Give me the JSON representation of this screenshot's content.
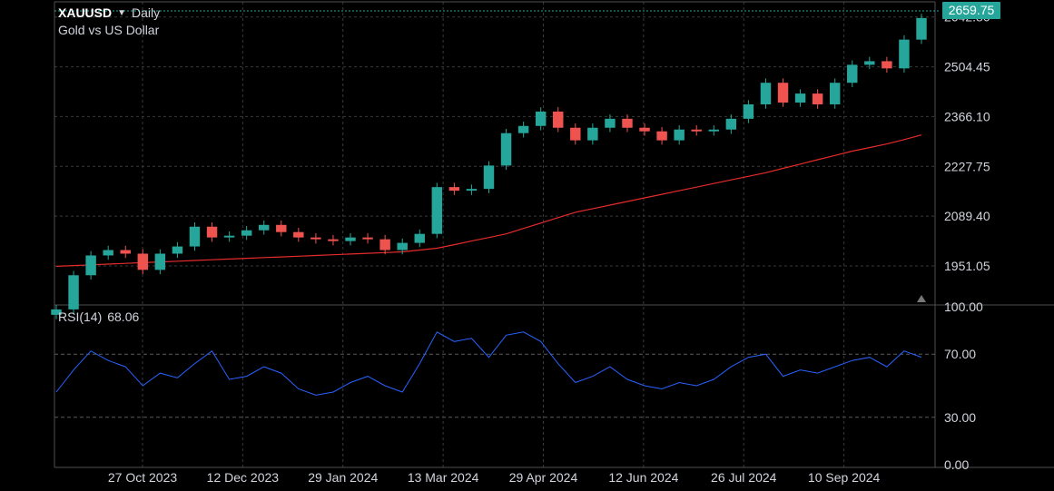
{
  "header": {
    "symbol": "XAUUSD",
    "caret_icon": "dropdown-caret-icon",
    "interval": "Daily",
    "subtitle": "Gold vs US Dollar"
  },
  "price_tag": {
    "value": "2659.75",
    "color": "#26a69a"
  },
  "rsi_label": {
    "name": "RSI(14)",
    "value": "68.06"
  },
  "colors": {
    "up": "#26a69a",
    "down": "#ef5350",
    "ma": "#e52b2b",
    "rsi": "#2962ff",
    "grid": "#3a3a3a"
  },
  "chart_data": [
    {
      "type": "candlestick",
      "name": "XAUUSD Daily",
      "x": [
        "2023-10-02",
        "2023-10-09",
        "2023-10-16",
        "2023-10-23",
        "2023-10-30",
        "2023-11-06",
        "2023-11-13",
        "2023-11-20",
        "2023-11-27",
        "2023-12-04",
        "2023-12-11",
        "2023-12-18",
        "2023-12-25",
        "2024-01-01",
        "2024-01-08",
        "2024-01-15",
        "2024-01-22",
        "2024-01-29",
        "2024-02-05",
        "2024-02-12",
        "2024-02-19",
        "2024-02-26",
        "2024-03-04",
        "2024-03-11",
        "2024-03-18",
        "2024-03-25",
        "2024-04-01",
        "2024-04-08",
        "2024-04-15",
        "2024-04-22",
        "2024-04-29",
        "2024-05-06",
        "2024-05-13",
        "2024-05-20",
        "2024-05-27",
        "2024-06-03",
        "2024-06-10",
        "2024-06-17",
        "2024-06-24",
        "2024-07-01",
        "2024-07-08",
        "2024-07-15",
        "2024-07-22",
        "2024-07-29",
        "2024-08-05",
        "2024-08-12",
        "2024-08-19",
        "2024-08-26",
        "2024-09-02",
        "2024-09-09",
        "2024-09-16"
      ],
      "values": [
        1830,
        1925,
        1980,
        1995,
        1985,
        1940,
        1985,
        2005,
        2060,
        2030,
        2035,
        2050,
        2065,
        2045,
        2030,
        2025,
        2020,
        2030,
        2025,
        1995,
        2015,
        2040,
        2170,
        2160,
        2165,
        2230,
        2320,
        2340,
        2380,
        2335,
        2300,
        2335,
        2360,
        2335,
        2325,
        2300,
        2330,
        2325,
        2330,
        2360,
        2400,
        2460,
        2405,
        2430,
        2400,
        2460,
        2510,
        2520,
        2500,
        2580,
        2640
      ],
      "yticks": [
        "1951.05",
        "2089.40",
        "2227.75",
        "2366.10",
        "2504.45",
        "2642.80"
      ],
      "xticks": [
        "27 Oct 2023",
        "12 Dec 2023",
        "29 Jan 2024",
        "13 Mar 2024",
        "29 Apr 2024",
        "12 Jun 2024",
        "26 Jul 2024",
        "10 Sep 2024"
      ],
      "ylim": [
        1850,
        2680
      ],
      "last": 2659.75,
      "grid": true
    },
    {
      "type": "line",
      "name": "Moving Average",
      "values": [
        1950,
        1952,
        1954,
        1956,
        1958,
        1960,
        1962,
        1964,
        1966,
        1968,
        1970,
        1972,
        1974,
        1976,
        1978,
        1980,
        1982,
        1984,
        1986,
        1988,
        1990,
        1995,
        2000,
        2010,
        2020,
        2030,
        2040,
        2055,
        2070,
        2085,
        2100,
        2110,
        2120,
        2130,
        2140,
        2150,
        2160,
        2170,
        2180,
        2190,
        2200,
        2210,
        2222,
        2234,
        2246,
        2258,
        2270,
        2280,
        2290,
        2302,
        2315
      ]
    },
    {
      "type": "line",
      "name": "RSI(14)",
      "values": [
        46,
        60,
        72,
        66,
        62,
        50,
        58,
        55,
        64,
        72,
        54,
        56,
        62,
        58,
        48,
        44,
        46,
        52,
        56,
        50,
        46,
        64,
        84,
        78,
        80,
        68,
        82,
        84,
        78,
        64,
        52,
        56,
        62,
        54,
        50,
        48,
        52,
        50,
        54,
        62,
        68,
        70,
        56,
        60,
        58,
        62,
        66,
        68,
        62,
        72,
        68.06
      ],
      "yticks": [
        "0.00",
        "30.00",
        "70.00",
        "100.00"
      ],
      "ylim": [
        0,
        100
      ],
      "reference_lines": [
        30,
        70
      ]
    }
  ]
}
